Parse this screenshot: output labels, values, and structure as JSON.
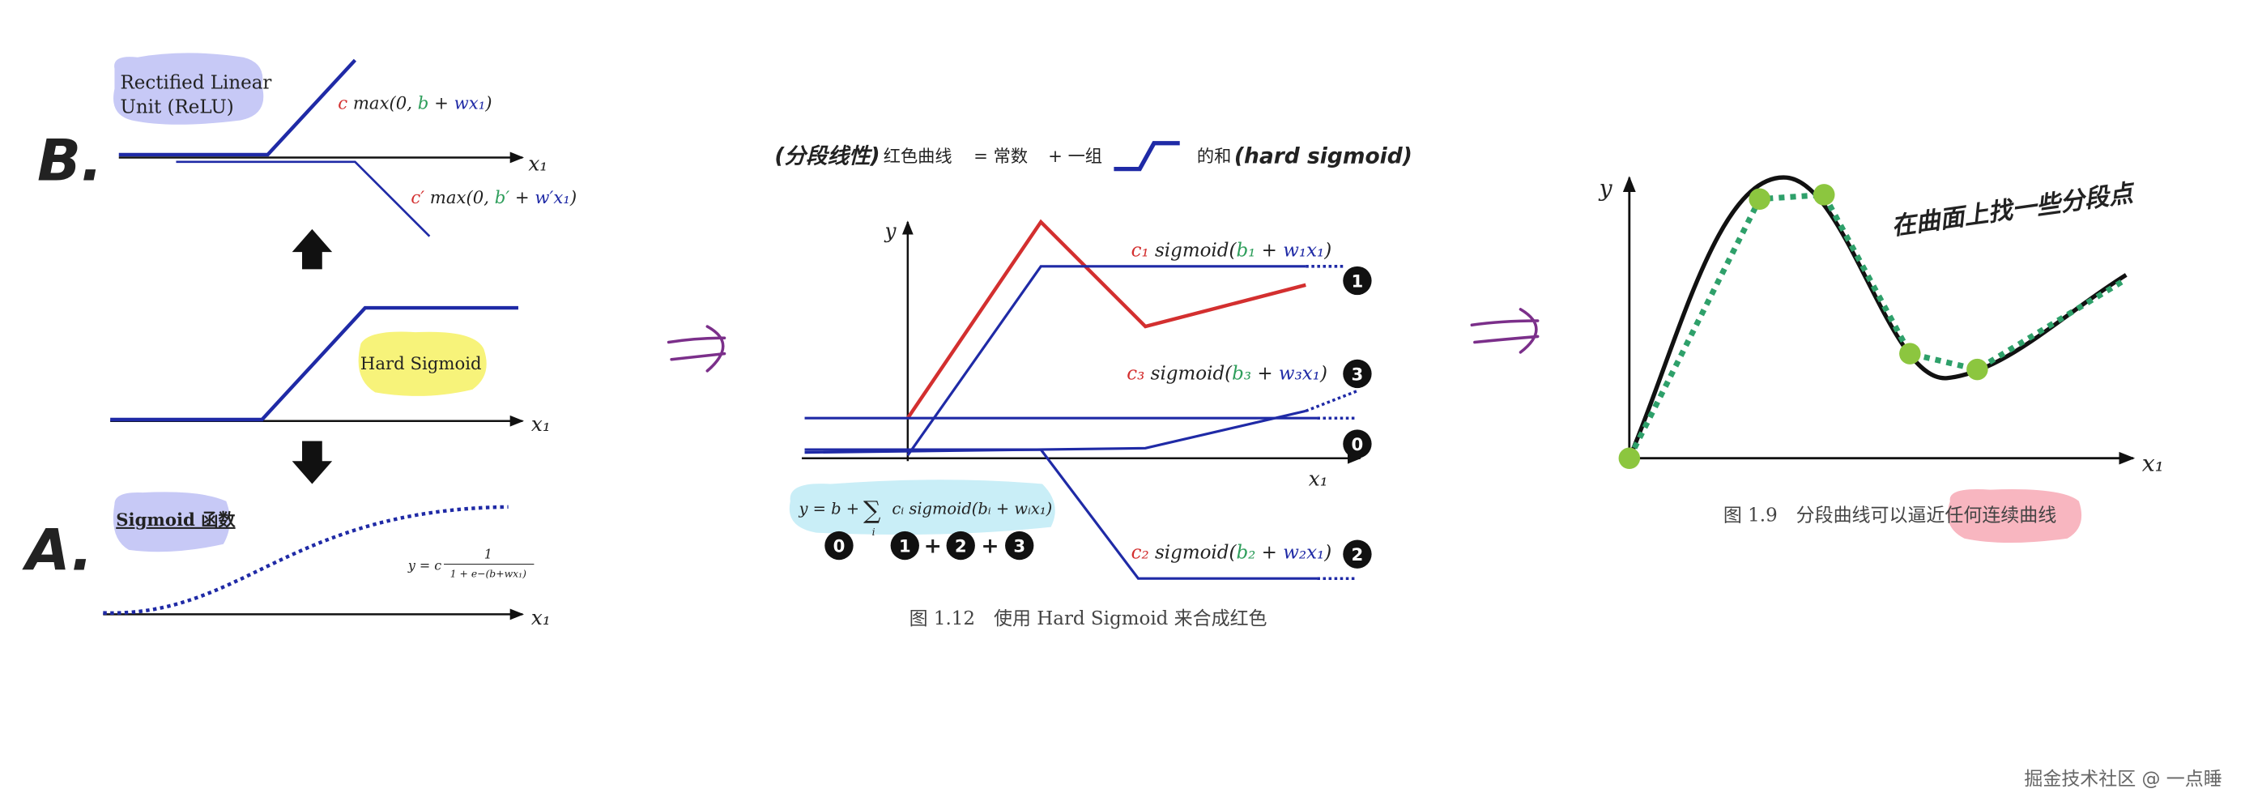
{
  "left_column": {
    "relu": {
      "label": "B.",
      "bubble_lines": [
        "Rectified Linear",
        "Unit (ReLU)"
      ],
      "axis_label": "x₁",
      "formula_top": [
        {
          "text": "c",
          "color": "#d32f2f"
        },
        {
          "text": " max(0, ",
          "color": "#222222"
        },
        {
          "text": "b",
          "color": "#2e9e5b"
        },
        {
          "text": " + ",
          "color": "#222222"
        },
        {
          "text": "wx₁",
          "color": "#1f2aa6"
        },
        {
          "text": ")",
          "color": "#222222"
        }
      ],
      "formula_bottom": [
        {
          "text": "c′",
          "color": "#d32f2f"
        },
        {
          "text": " max(0, ",
          "color": "#222222"
        },
        {
          "text": "b′",
          "color": "#2e9e5b"
        },
        {
          "text": " + ",
          "color": "#222222"
        },
        {
          "text": "w′x₁",
          "color": "#1f2aa6"
        },
        {
          "text": ")",
          "color": "#222222"
        }
      ]
    },
    "hard_sigmoid": {
      "bubble": "Hard Sigmoid",
      "axis_label": "x₁"
    },
    "sigmoid": {
      "label": "A.",
      "bubble": "Sigmoid 函数",
      "axis_label": "x₁",
      "formula": {
        "lhs": "y = c",
        "numerator": "1",
        "denominator": "1 + e−(b+wx₁)"
      }
    }
  },
  "middle": {
    "heading": {
      "note": "(分段线性)",
      "target": "红色曲线",
      "constant": "= 常数",
      "group": "+ 一组",
      "sum_of": "的和",
      "hard_sigmoid": "(hard sigmoid)"
    },
    "axis_y": "y",
    "axis_x": "x₁",
    "formulas": [
      [
        {
          "text": "c₁",
          "color": "#d32f2f"
        },
        {
          "text": " sigmoid(",
          "color": "#222222"
        },
        {
          "text": "b₁",
          "color": "#2e9e5b"
        },
        {
          "text": " + ",
          "color": "#222222"
        },
        {
          "text": "w₁x₁",
          "color": "#1f2aa6"
        },
        {
          "text": ")",
          "color": "#222222"
        }
      ],
      [
        {
          "text": "c₃",
          "color": "#d32f2f"
        },
        {
          "text": " sigmoid(",
          "color": "#222222"
        },
        {
          "text": "b₃",
          "color": "#2e9e5b"
        },
        {
          "text": " + ",
          "color": "#222222"
        },
        {
          "text": "w₃x₁",
          "color": "#1f2aa6"
        },
        {
          "text": ")",
          "color": "#222222"
        }
      ],
      [
        {
          "text": "c₂",
          "color": "#d32f2f"
        },
        {
          "text": " sigmoid(",
          "color": "#222222"
        },
        {
          "text": "b₂",
          "color": "#2e9e5b"
        },
        {
          "text": " + ",
          "color": "#222222"
        },
        {
          "text": "w₂x₁",
          "color": "#1f2aa6"
        },
        {
          "text": ")",
          "color": "#222222"
        }
      ]
    ],
    "curve_markers": [
      "1",
      "3",
      "0",
      "2"
    ],
    "sum": {
      "lhs": "y = b +",
      "sigma": "∑",
      "index": "i",
      "rhs": "cᵢ sigmoid(bᵢ + wᵢx₁)",
      "markers": [
        "0",
        "1",
        "2",
        "3"
      ],
      "operator": "+"
    },
    "caption": "图 1.12　使用 Hard Sigmoid 来合成红色"
  },
  "right": {
    "axis_y": "y",
    "axis_x": "x₁",
    "note": "在曲面上找一些分段点",
    "caption": "图 1.9　分段曲线可以逼近任何连续曲线"
  },
  "watermark": "掘金技术社区 @ 一点睡"
}
